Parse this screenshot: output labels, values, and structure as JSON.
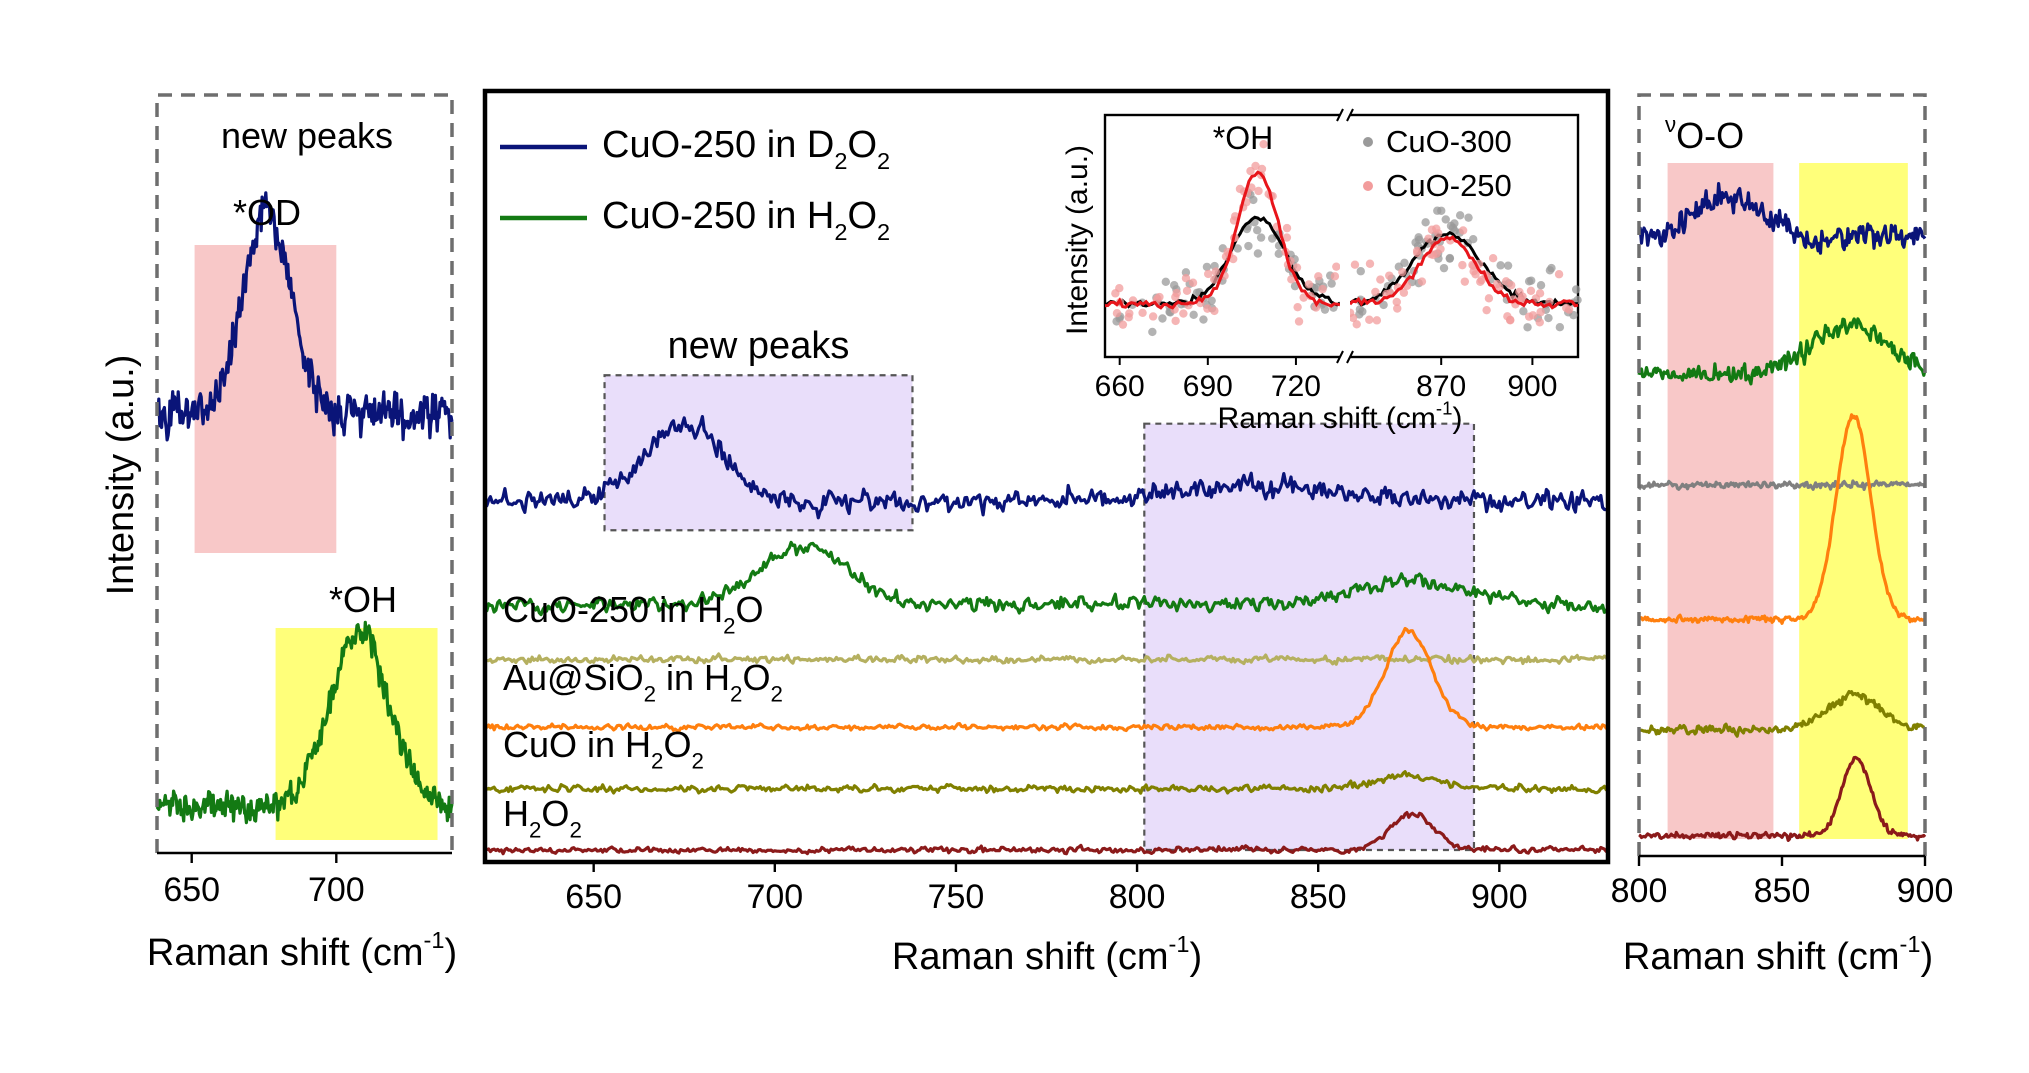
{
  "chart_data": [
    {
      "panel": "left",
      "type": "line",
      "title": "new peaks",
      "xlabel": "Raman shift (cm",
      "xlabel_sup": "-1",
      "xlabel_end": ")",
      "ylabel": "Intensity (a.u.)",
      "xlim": [
        638,
        740
      ],
      "xticks": [
        650,
        700
      ],
      "highlights": [
        {
          "label": "*OD",
          "x_range": [
            651,
            700
          ],
          "color": "#f8c8c8"
        },
        {
          "label": "*OH",
          "x_range": [
            679,
            735
          ],
          "color": "#ffff7a"
        }
      ],
      "series": [
        {
          "color": "#0a1478",
          "offset": 0.6,
          "baseline": 0.025,
          "noise": 0.035,
          "peaks": [
            {
              "center": 676,
              "amplitude": 0.3,
              "width": 8
            }
          ]
        },
        {
          "color": "#137a13",
          "offset": 0.03,
          "baseline": 0.02,
          "noise": 0.025,
          "peaks": [
            {
              "center": 708,
              "amplitude": 0.26,
              "width": 10
            }
          ]
        }
      ]
    },
    {
      "panel": "main",
      "type": "line",
      "xlabel": "Raman shift (cm",
      "xlabel_sup": "-1",
      "xlabel_end": ")",
      "xlim": [
        620,
        930
      ],
      "xticks": [
        650,
        700,
        750,
        800,
        850,
        900
      ],
      "box_label": "new peaks",
      "boxes": [
        {
          "x_range": [
            653,
            738
          ],
          "y_range": [
            0.495,
            0.735
          ]
        },
        {
          "x_range": [
            802,
            893
          ],
          "y_range": [
            0.0,
            0.66
          ]
        }
      ],
      "series": [
        {
          "name": "CuO-250 in D",
          "name_sub": "2",
          "name_mid": "O",
          "name_sub2": "2",
          "legend": true,
          "color": "#0a1478",
          "offset": 0.54,
          "noise": 0.018,
          "peaks": [
            {
              "center": 675,
              "amplitude": 0.118,
              "width": 11
            },
            {
              "center": 832,
              "amplitude": 0.025,
              "width": 20
            }
          ]
        },
        {
          "name": "CuO-250 in H",
          "name_sub": "2",
          "name_mid": "O",
          "name_sub2": "2",
          "legend": true,
          "color": "#137a13",
          "offset": 0.38,
          "noise": 0.012,
          "peaks": [
            {
              "center": 708,
              "amplitude": 0.09,
              "width": 12
            },
            {
              "center": 875,
              "amplitude": 0.035,
              "width": 16
            }
          ]
        },
        {
          "name": "CuO-250 in H",
          "name_sub": "2",
          "name_mid": "O",
          "name_sub2": "",
          "color": "#b5b060",
          "offset": 0.295,
          "noise": 0.006,
          "peaks": []
        },
        {
          "name": "Au@SiO",
          "name_sub": "2",
          "name_mid": " in H",
          "name_sub2": "2",
          "name_end": "O",
          "name_sub3": "2",
          "color": "#ff7f0e",
          "offset": 0.19,
          "noise": 0.005,
          "peaks": [
            {
              "center": 875,
              "amplitude": 0.15,
              "width": 6.5
            }
          ]
        },
        {
          "name": "CuO in H",
          "name_sub": "2",
          "name_mid": "O",
          "name_sub2": "2",
          "color": "#808000",
          "offset": 0.095,
          "noise": 0.006,
          "peaks": [
            {
              "center": 875,
              "amplitude": 0.02,
              "width": 8
            }
          ]
        },
        {
          "name": "H",
          "name_sub": "2",
          "name_mid": "O",
          "name_sub2": "2",
          "color": "#8b1a1a",
          "offset": 0.0,
          "noise": 0.005,
          "peaks": [
            {
              "center": 876,
              "amplitude": 0.055,
              "width": 6
            }
          ]
        }
      ]
    },
    {
      "panel": "inset",
      "type": "scatter",
      "ylabel": "Intensity (a.u.)",
      "xlabel": "Raman shift (cm",
      "xlabel_sup": "-1",
      "xlabel_end": ")",
      "annotation": "*OH",
      "xticks": [
        660,
        690,
        720,
        870,
        900
      ],
      "segments": [
        {
          "x_range": [
            655,
            735
          ]
        },
        {
          "x_range": [
            840,
            915
          ]
        }
      ],
      "series": [
        {
          "name": "CuO-300",
          "point_color": "#9a9a9a",
          "line_color": "#000000",
          "peaks": [
            {
              "center": 707,
              "amplitude": 0.56,
              "width": 9
            },
            {
              "center": 872,
              "amplitude": 0.45,
              "width": 11
            }
          ]
        },
        {
          "name": "CuO-250",
          "point_color": "#f29c9c",
          "line_color": "#e8151b",
          "peaks": [
            {
              "center": 707,
              "amplitude": 0.85,
              "width": 7
            },
            {
              "center": 872,
              "amplitude": 0.43,
              "width": 9
            }
          ]
        }
      ]
    },
    {
      "panel": "right",
      "type": "line",
      "title": "ν",
      "title_sub": "O-O",
      "xlabel": "Raman shift (cm",
      "xlabel_sup": "-1",
      "xlabel_end": ")",
      "xlim": [
        800,
        900
      ],
      "xticks": [
        800,
        850,
        900
      ],
      "highlights": [
        {
          "x_range": [
            810,
            847
          ],
          "color": "#f8c8c8"
        },
        {
          "x_range": [
            856,
            894
          ],
          "color": "#ffff7a"
        }
      ],
      "series": [
        {
          "color": "#0a1478",
          "offset": 0.865,
          "noise": 0.022,
          "peaks": [
            {
              "center": 832,
              "amplitude": 0.06,
              "width": 11
            }
          ]
        },
        {
          "color": "#137a13",
          "offset": 0.67,
          "noise": 0.015,
          "peaks": [
            {
              "center": 874,
              "amplitude": 0.07,
              "width": 14
            }
          ]
        },
        {
          "color": "#808080",
          "offset": 0.515,
          "noise": 0.006,
          "peaks": []
        },
        {
          "color": "#ff7f0e",
          "offset": 0.325,
          "noise": 0.005,
          "peaks": [
            {
              "center": 875,
              "amplitude": 0.29,
              "width": 6
            }
          ]
        },
        {
          "color": "#808000",
          "offset": 0.17,
          "noise": 0.007,
          "peaks": [
            {
              "center": 875,
              "amplitude": 0.05,
              "width": 9
            }
          ]
        },
        {
          "color": "#8b1a1a",
          "offset": 0.02,
          "noise": 0.005,
          "peaks": [
            {
              "center": 876,
              "amplitude": 0.11,
              "width": 5
            }
          ]
        }
      ]
    }
  ]
}
